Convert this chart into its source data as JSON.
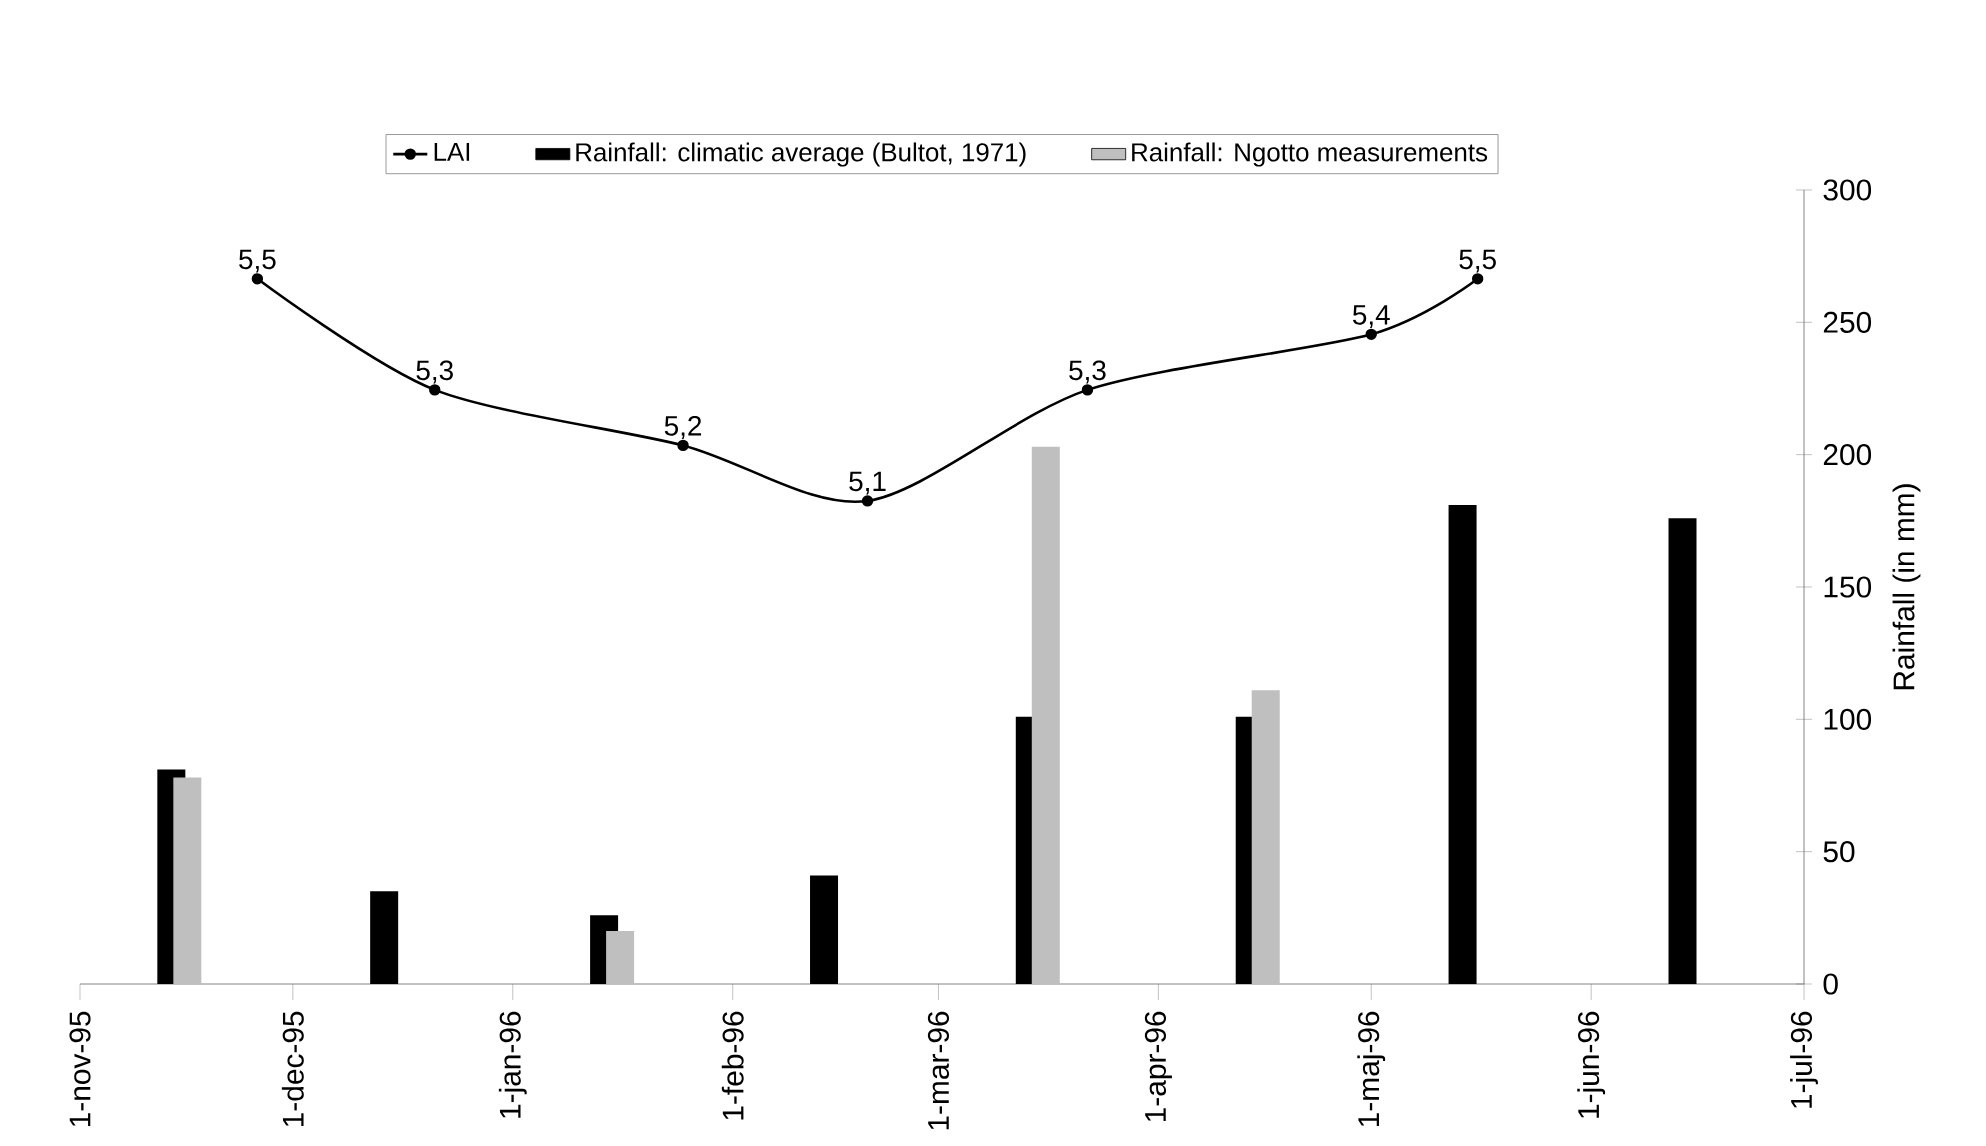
{
  "chart_data": {
    "type": "bar",
    "ylabel": "Rainfall (in mm)",
    "xlim": [
      "1995-11-01",
      "1996-07-01"
    ],
    "xticks": [
      {
        "value": "1995-11-01",
        "label": "1-nov-95"
      },
      {
        "value": "1995-12-01",
        "label": "1-dec-95"
      },
      {
        "value": "1996-01-01",
        "label": "1-jan-96"
      },
      {
        "value": "1996-02-01",
        "label": "1-feb-96"
      },
      {
        "value": "1996-03-01",
        "label": "1-mar-96"
      },
      {
        "value": "1996-04-01",
        "label": "1-apr-96"
      },
      {
        "value": "1996-05-01",
        "label": "1-maj-96"
      },
      {
        "value": "1996-06-01",
        "label": "1-jun-96"
      },
      {
        "value": "1996-07-01",
        "label": "1-jul-96"
      }
    ],
    "ylim": [
      0,
      300
    ],
    "yticks": [
      0,
      50,
      100,
      150,
      200,
      250,
      300
    ],
    "y2lim": [
      4.23,
      5.66
    ],
    "legend": "top",
    "x": [
      "1995-11-15",
      "1995-12-15",
      "1996-01-15",
      "1996-02-15",
      "1996-03-15",
      "1996-04-15",
      "1996-05-15",
      "1996-06-15"
    ],
    "series": [
      {
        "name": "LAI",
        "type": "line",
        "axis": "y2",
        "color": "#000000",
        "marker": "circle",
        "x": [
          "1995-11-26",
          "1995-12-21",
          "1996-01-25",
          "1996-02-20",
          "1996-03-22",
          "1996-05-01",
          "1996-05-16"
        ],
        "values": [
          5.5,
          5.3,
          5.2,
          5.1,
          5.3,
          5.4,
          5.5
        ],
        "value_labels": [
          "5,5",
          "5,3",
          "5,2",
          "5,1",
          "5,3",
          "5,4",
          "5,5"
        ]
      },
      {
        "name": "Rainfall: climatic average (Bultot, 1971)",
        "color": "#000000",
        "values": [
          81,
          35,
          26,
          41,
          101,
          101,
          181,
          176
        ]
      },
      {
        "name": "Rainfall: Ngotto measurements",
        "color": "#bfbfbf",
        "values": [
          78,
          null,
          20,
          null,
          203,
          111,
          null,
          null
        ]
      }
    ]
  }
}
